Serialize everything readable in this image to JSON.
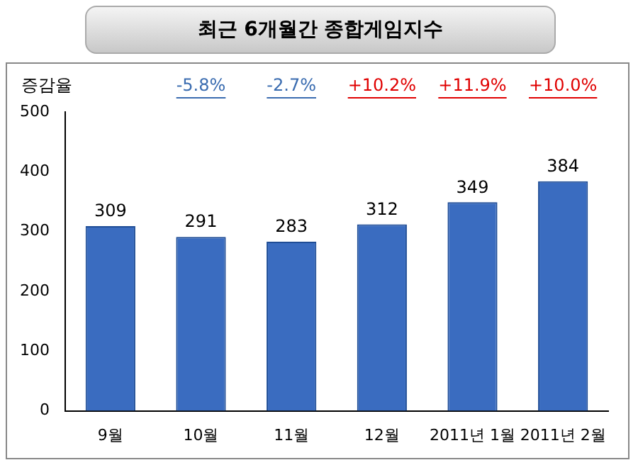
{
  "chart_data": {
    "type": "bar",
    "title": "최근 6개월간 종합게임지수",
    "categories": [
      "9월",
      "10월",
      "11월",
      "12월",
      "2011년 1월",
      "2011년 2월"
    ],
    "values": [
      309,
      291,
      283,
      312,
      349,
      384
    ],
    "color": "#3a6cc0",
    "ylim": [
      0,
      500
    ],
    "yticks": [
      0,
      100,
      200,
      300,
      400,
      500
    ],
    "grid": false,
    "legend": false,
    "data_labels": true,
    "annotations": [
      "증감율",
      "-5.8%",
      "-2.7%",
      "+10.2%",
      "+11.9%",
      "+10.0%"
    ]
  }
}
